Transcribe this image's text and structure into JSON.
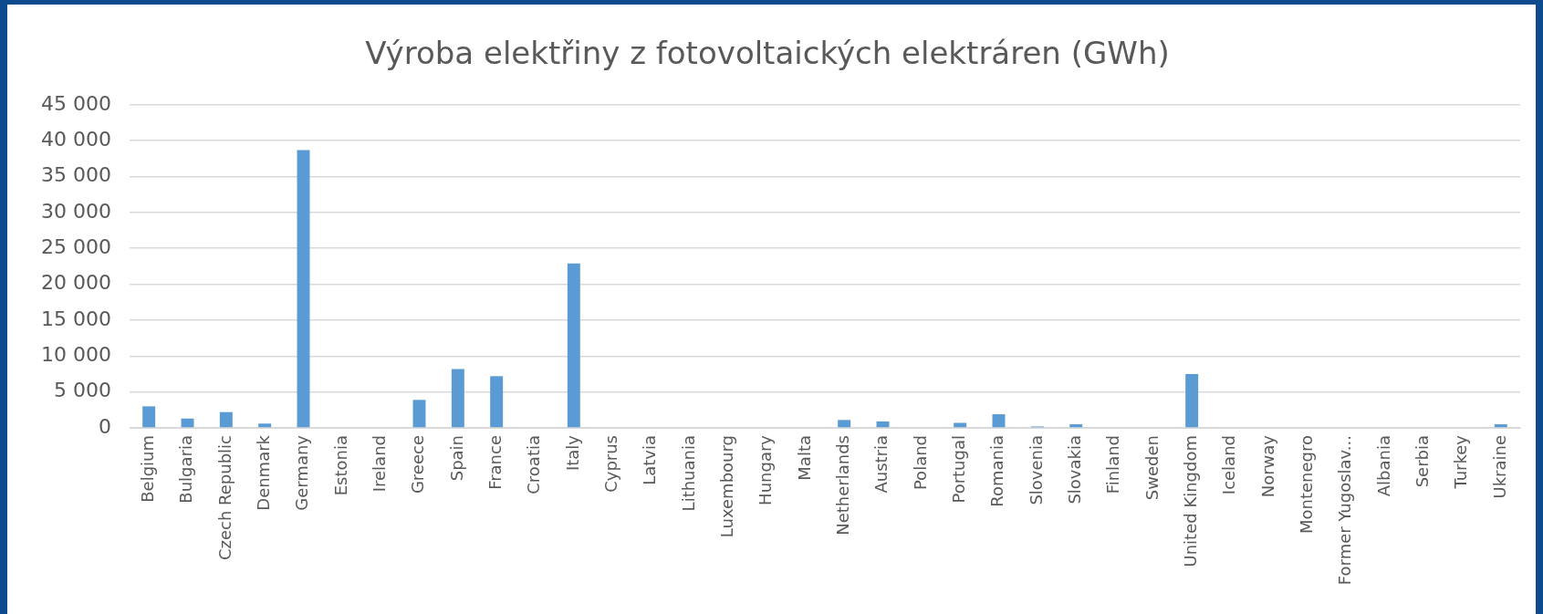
{
  "chart_data": {
    "type": "bar",
    "title": "Výroba elektřiny z fotovoltaických elektráren (GWh)",
    "categories": [
      "Belgium",
      "Bulgaria",
      "Czech Republic",
      "Denmark",
      "Germany",
      "Estonia",
      "Ireland",
      "Greece",
      "Spain",
      "France",
      "Croatia",
      "Italy",
      "Cyprus",
      "Latvia",
      "Lithuania",
      "Luxembourg",
      "Hungary",
      "Malta",
      "Netherlands",
      "Austria",
      "Poland",
      "Portugal",
      "Romania",
      "Slovenia",
      "Slovakia",
      "Finland",
      "Sweden",
      "United Kingdom",
      "Iceland",
      "Norway",
      "Montenegro",
      "Former Yugoslav...",
      "Albania",
      "Serbia",
      "Turkey",
      "Ukraine"
    ],
    "values": [
      3000,
      1300,
      2200,
      600,
      38700,
      0,
      0,
      3900,
      8200,
      7200,
      0,
      22900,
      0,
      0,
      0,
      0,
      0,
      0,
      1100,
      900,
      0,
      700,
      1900,
      200,
      500,
      0,
      0,
      7500,
      0,
      0,
      0,
      0,
      0,
      0,
      0,
      500
    ],
    "color": "#5b9bd5",
    "ylim": [
      0,
      45000
    ],
    "yticks": [
      0,
      {
        "value": 5000,
        "label": "5 000"
      },
      {
        "value": 10000,
        "label": "10 000"
      },
      {
        "value": 15000,
        "label": "15 000"
      },
      {
        "value": 20000,
        "label": "20 000"
      },
      {
        "value": 25000,
        "label": "25 000"
      },
      {
        "value": 30000,
        "label": "30 000"
      },
      {
        "value": 35000,
        "label": "35 000"
      },
      {
        "value": 40000,
        "label": "40 000"
      },
      {
        "value": 45000,
        "label": "45 000"
      }
    ],
    "grid": "y",
    "legend": false
  }
}
